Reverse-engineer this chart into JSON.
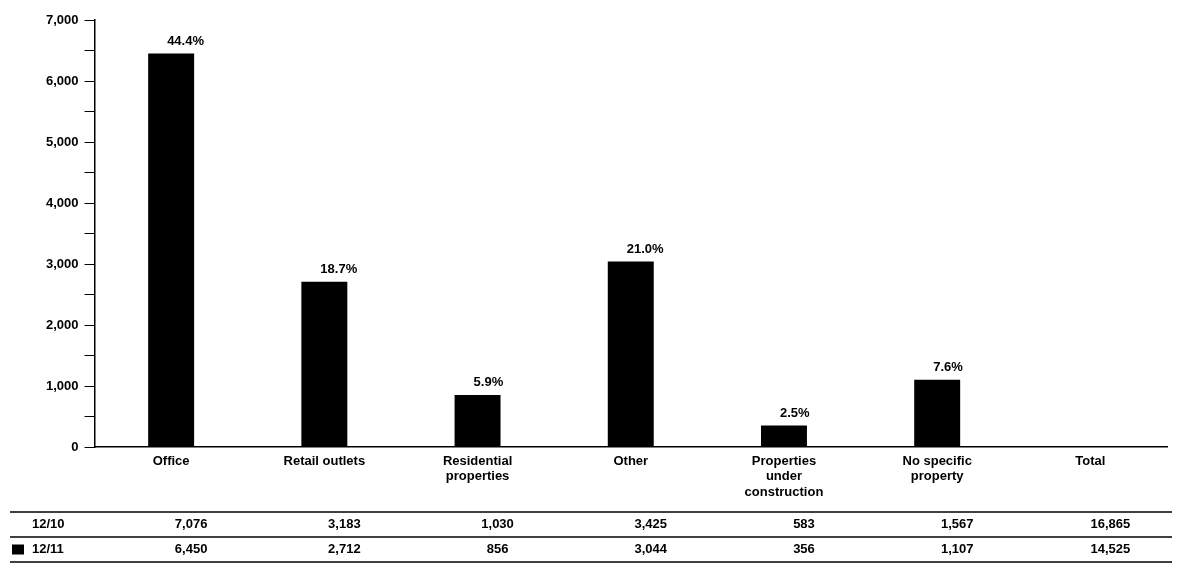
{
  "chart_data": {
    "type": "bar",
    "categories": [
      "Office",
      "Retail outlets",
      "Residential properties",
      "Other",
      "Properties under construction",
      "No specific property",
      "Total"
    ],
    "series": [
      {
        "name": "12/10",
        "values": [
          null,
          null,
          null,
          null,
          null,
          null,
          null
        ],
        "value_labels": [
          "7,076",
          "3,183",
          "1,030",
          "3,425",
          "583",
          "1,567",
          "16,865"
        ]
      },
      {
        "name": "12/11",
        "color": "#000000",
        "values": [
          6450,
          2712,
          856,
          3044,
          356,
          1107,
          null
        ],
        "value_labels": [
          "6,450",
          "2,712",
          "856",
          "3,044",
          "356",
          "1,107",
          "14,525"
        ]
      }
    ],
    "ylim": [
      0,
      7000
    ],
    "yticks": [
      {
        "value": 0,
        "label": "0"
      },
      {
        "value": 500,
        "label": null
      },
      {
        "value": 1000,
        "label": "1,000"
      },
      {
        "value": 1500,
        "label": null
      },
      {
        "value": 2000,
        "label": "2,000"
      },
      {
        "value": 2500,
        "label": null
      },
      {
        "value": 3000,
        "label": "3,000"
      },
      {
        "value": 3500,
        "label": null
      },
      {
        "value": 4000,
        "label": "4,000"
      },
      {
        "value": 4500,
        "label": null
      },
      {
        "value": 5000,
        "label": "5,000"
      },
      {
        "value": 5500,
        "label": null
      },
      {
        "value": 6000,
        "label": "6,000"
      },
      {
        "value": 6500,
        "label": null
      },
      {
        "value": 7000,
        "label": "7,000"
      }
    ],
    "annotations": [
      {
        "text": "44.4%",
        "x": "Office",
        "y": 6450
      },
      {
        "text": "18.7%",
        "x": "Retail outlets",
        "y": 2712
      },
      {
        "text": "5.9%",
        "x": "Residential properties",
        "y": 856
      },
      {
        "text": "21.0%",
        "x": "Other",
        "y": 3044
      },
      {
        "text": "2.5%",
        "x": "Properties under construction",
        "y": 356
      },
      {
        "text": "7.6%",
        "x": "No specific property",
        "y": 1107
      }
    ],
    "grid": false,
    "legend": "bottom left"
  }
}
